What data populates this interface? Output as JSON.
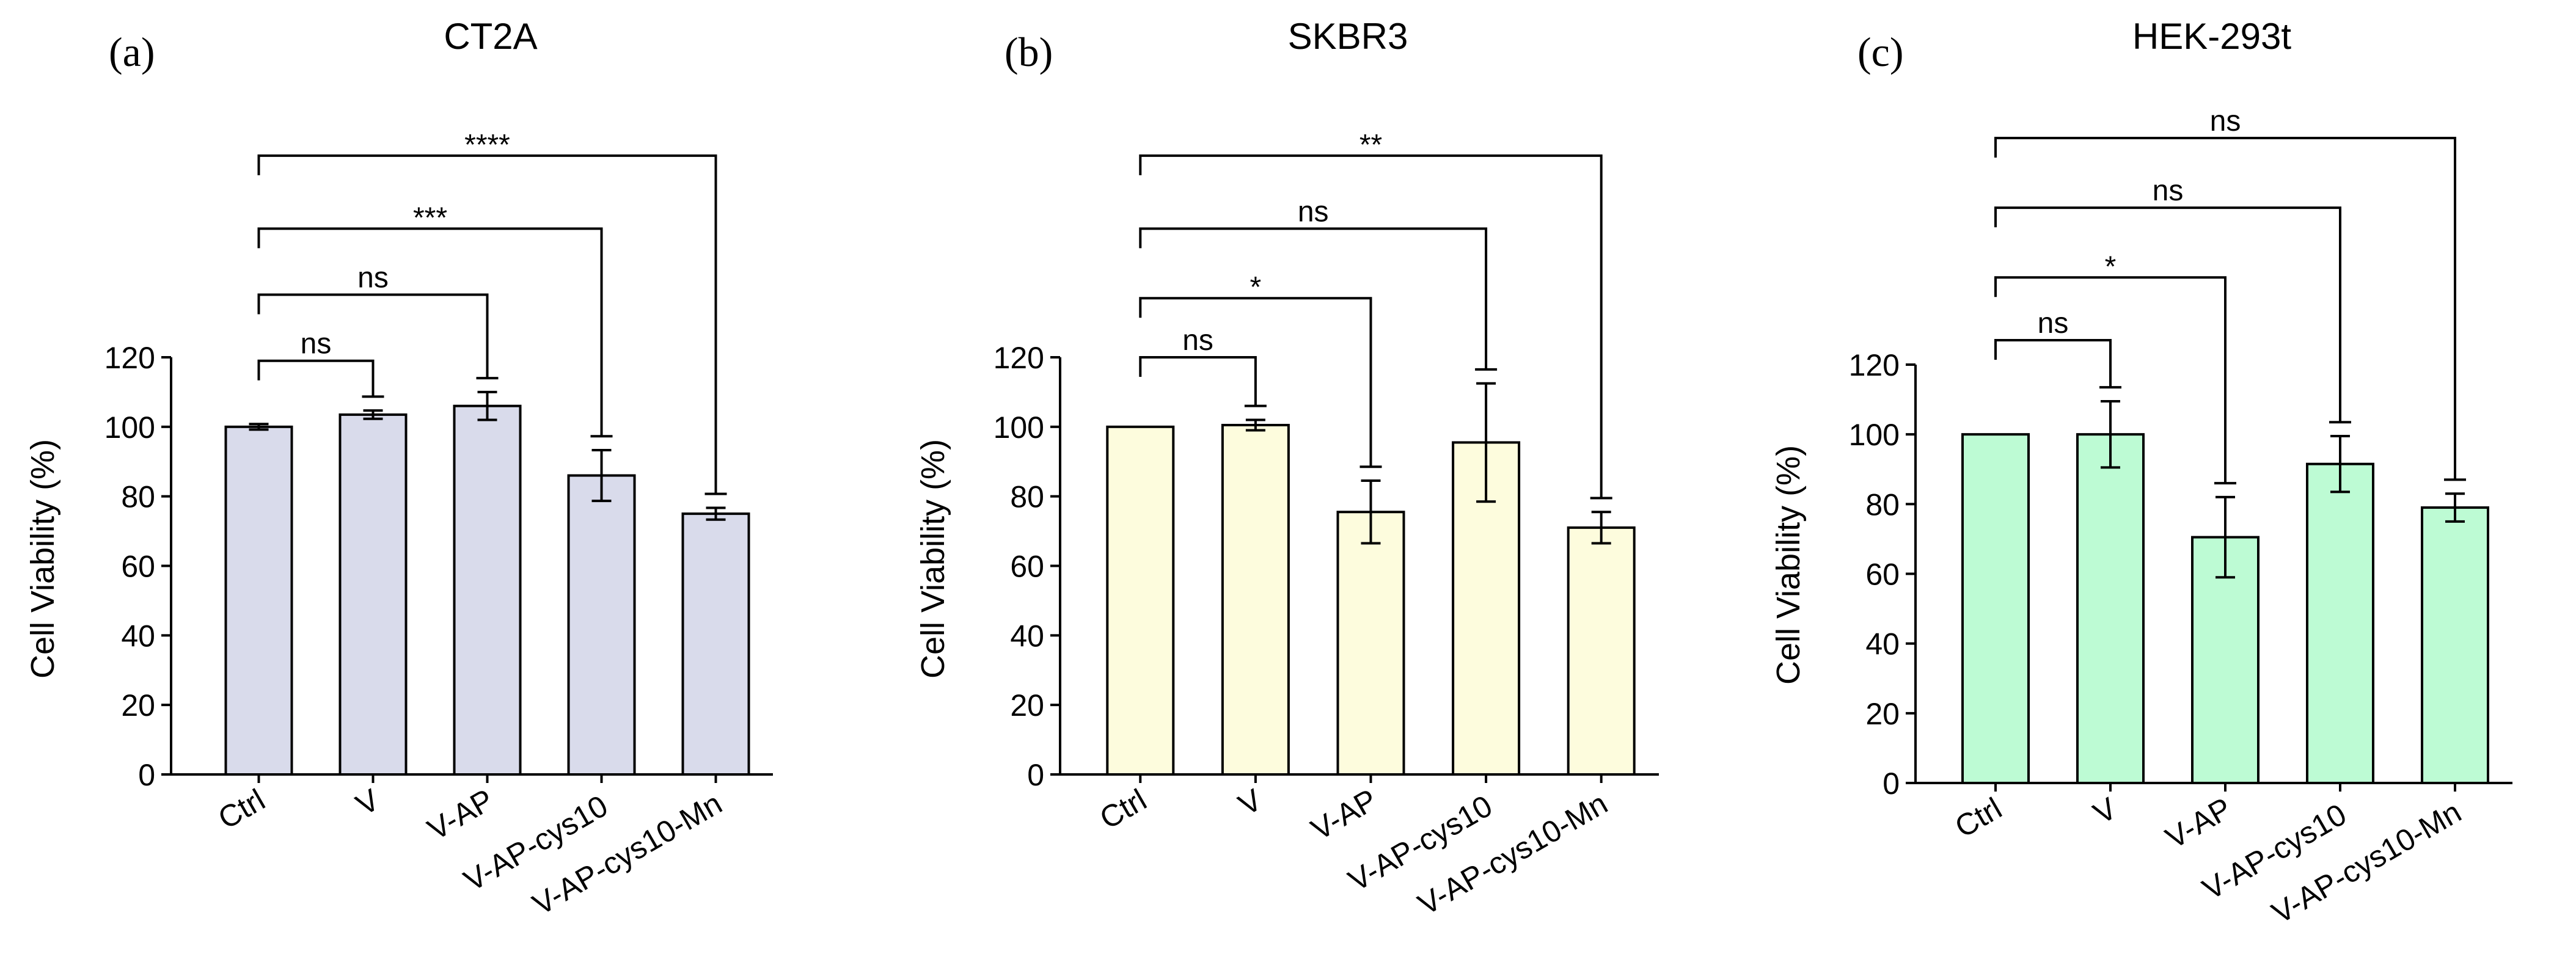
{
  "chart_data": [
    {
      "type": "bar",
      "panel_label": "(a)",
      "title": "CT2A",
      "xlabel": "",
      "ylabel": "Cell Viability (%)",
      "ylim": [
        0,
        120
      ],
      "yticks": [
        0,
        20,
        40,
        60,
        80,
        100,
        120
      ],
      "categories": [
        "Ctrl",
        "V",
        "V-AP",
        "V-AP-cys10",
        "V-AP-cys10-Mn"
      ],
      "values": [
        100,
        103.5,
        106,
        86,
        75
      ],
      "errors": [
        0.8,
        1.2,
        4,
        7.3,
        1.7
      ],
      "bar_color": "#d9dbeb",
      "significance": [
        {
          "from": "Ctrl",
          "to": "V",
          "label": "ns",
          "value": 119
        },
        {
          "from": "Ctrl",
          "to": "V-AP",
          "label": "ns",
          "value": 138
        },
        {
          "from": "Ctrl",
          "to": "V-AP-cys10",
          "label": "***",
          "value": 157
        },
        {
          "from": "Ctrl",
          "to": "V-AP-cys10-Mn",
          "label": "****",
          "value": 178
        }
      ]
    },
    {
      "type": "bar",
      "panel_label": "(b)",
      "title": "SKBR3",
      "xlabel": "",
      "ylabel": "Cell Viability (%)",
      "ylim": [
        0,
        120
      ],
      "yticks": [
        0,
        20,
        40,
        60,
        80,
        100,
        120
      ],
      "categories": [
        "Ctrl",
        "V",
        "V-AP",
        "V-AP-cys10",
        "V-AP-cys10-Mn"
      ],
      "values": [
        100,
        100.5,
        75.5,
        95.5,
        71
      ],
      "errors": [
        0,
        1.5,
        9,
        17,
        4.5
      ],
      "bar_color": "#fdfcdd",
      "significance": [
        {
          "from": "Ctrl",
          "to": "V",
          "label": "ns",
          "value": 120
        },
        {
          "from": "Ctrl",
          "to": "V-AP",
          "label": "*",
          "value": 137
        },
        {
          "from": "Ctrl",
          "to": "V-AP-cys10",
          "label": "ns",
          "value": 157
        },
        {
          "from": "Ctrl",
          "to": "V-AP-cys10-Mn",
          "label": "**",
          "value": 178
        }
      ]
    },
    {
      "type": "bar",
      "panel_label": "(c)",
      "title": "HEK-293t",
      "xlabel": "",
      "ylabel": "Cell Viability (%)",
      "ylim": [
        0,
        120
      ],
      "yticks": [
        0,
        20,
        40,
        60,
        80,
        100,
        120
      ],
      "categories": [
        "Ctrl",
        "V",
        "V-AP",
        "V-AP-cys10",
        "V-AP-cys10-Mn"
      ],
      "values": [
        100,
        100,
        70.5,
        91.5,
        79
      ],
      "errors": [
        0,
        9.5,
        11.5,
        8,
        4
      ],
      "bar_color": "#bdfbd4",
      "significance": [
        {
          "from": "Ctrl",
          "to": "V",
          "label": "ns",
          "value": 127
        },
        {
          "from": "Ctrl",
          "to": "V-AP",
          "label": "*",
          "value": 145
        },
        {
          "from": "Ctrl",
          "to": "V-AP-cys10",
          "label": "ns",
          "value": 165
        },
        {
          "from": "Ctrl",
          "to": "V-AP-cys10-Mn",
          "label": "ns",
          "value": 185
        }
      ]
    }
  ]
}
